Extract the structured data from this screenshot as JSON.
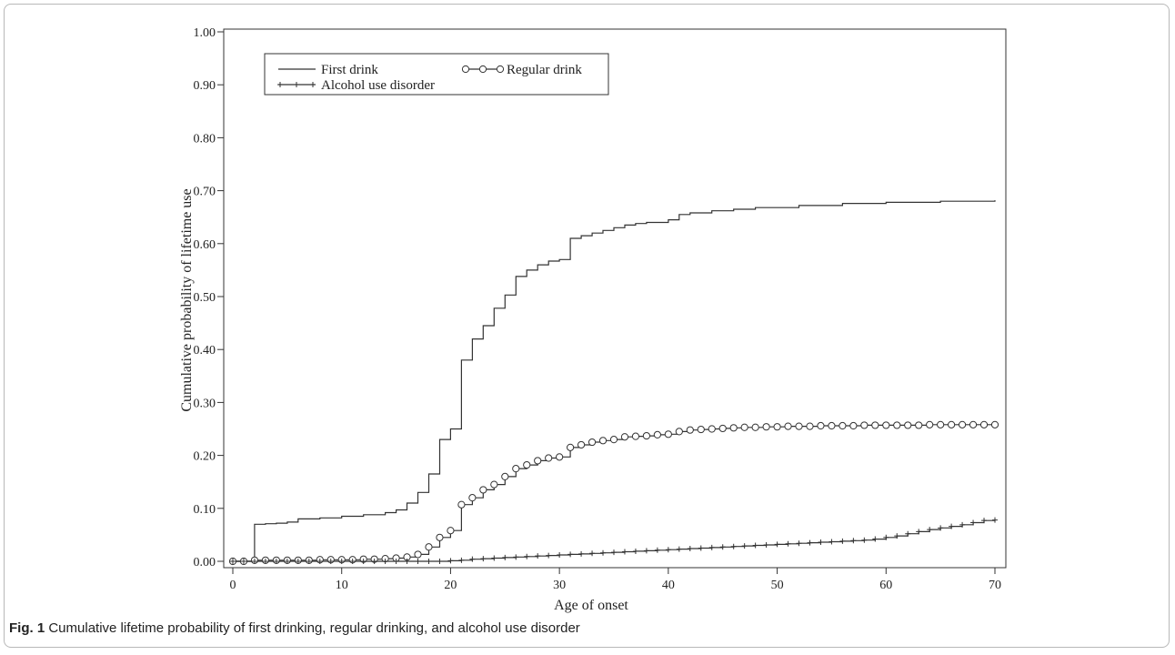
{
  "caption": {
    "label": "Fig. 1",
    "text": "Cumulative lifetime probability of first drinking, regular drinking, and alcohol use disorder"
  },
  "chart_data": {
    "type": "line",
    "xlabel": "Age of onset",
    "ylabel": "Cumulative probability of lifetime use",
    "xlim": [
      0,
      70
    ],
    "ylim": [
      0,
      1
    ],
    "xticks": [
      "0",
      "10",
      "20",
      "30",
      "40",
      "50",
      "60",
      "70"
    ],
    "yticks": [
      "0.00",
      "0.10",
      "0.20",
      "0.30",
      "0.40",
      "0.50",
      "0.60",
      "0.70",
      "0.80",
      "0.90",
      "1.00"
    ],
    "legend_position": "top-left",
    "series": [
      {
        "name": "First drink",
        "marker": "none",
        "x": [
          0,
          2,
          3,
          4,
          5,
          6,
          8,
          10,
          12,
          14,
          15,
          16,
          17,
          18,
          19,
          20,
          21,
          22,
          23,
          24,
          25,
          26,
          27,
          28,
          29,
          30,
          31,
          32,
          33,
          34,
          35,
          36,
          37,
          38,
          40,
          41,
          42,
          44,
          46,
          48,
          52,
          56,
          60,
          65,
          70
        ],
        "y": [
          0.0,
          0.07,
          0.071,
          0.072,
          0.074,
          0.08,
          0.082,
          0.085,
          0.088,
          0.092,
          0.097,
          0.11,
          0.13,
          0.165,
          0.23,
          0.25,
          0.38,
          0.42,
          0.445,
          0.478,
          0.503,
          0.538,
          0.55,
          0.56,
          0.567,
          0.57,
          0.61,
          0.615,
          0.62,
          0.625,
          0.63,
          0.635,
          0.638,
          0.64,
          0.645,
          0.655,
          0.658,
          0.662,
          0.665,
          0.668,
          0.672,
          0.676,
          0.678,
          0.68,
          0.682
        ]
      },
      {
        "name": "Regular drink",
        "marker": "circle",
        "x": [
          0,
          1,
          2,
          3,
          4,
          5,
          6,
          7,
          8,
          9,
          10,
          11,
          12,
          13,
          14,
          15,
          16,
          17,
          18,
          19,
          20,
          21,
          22,
          23,
          24,
          25,
          26,
          27,
          28,
          29,
          30,
          31,
          32,
          33,
          34,
          35,
          36,
          37,
          38,
          39,
          40,
          41,
          42,
          43,
          44,
          45,
          46,
          47,
          48,
          49,
          50,
          51,
          52,
          53,
          54,
          55,
          56,
          57,
          58,
          59,
          60,
          61,
          62,
          63,
          64,
          65,
          66,
          67,
          68,
          69,
          70
        ],
        "y": [
          0.0,
          0.0,
          0.002,
          0.002,
          0.002,
          0.002,
          0.002,
          0.002,
          0.003,
          0.003,
          0.003,
          0.003,
          0.004,
          0.004,
          0.005,
          0.006,
          0.008,
          0.013,
          0.027,
          0.045,
          0.058,
          0.107,
          0.12,
          0.135,
          0.145,
          0.16,
          0.175,
          0.182,
          0.19,
          0.195,
          0.197,
          0.215,
          0.22,
          0.225,
          0.228,
          0.23,
          0.235,
          0.236,
          0.237,
          0.239,
          0.24,
          0.245,
          0.248,
          0.249,
          0.25,
          0.251,
          0.252,
          0.253,
          0.253,
          0.254,
          0.254,
          0.255,
          0.255,
          0.255,
          0.256,
          0.256,
          0.256,
          0.256,
          0.257,
          0.257,
          0.257,
          0.257,
          0.257,
          0.257,
          0.258,
          0.258,
          0.258,
          0.258,
          0.258,
          0.258,
          0.258
        ]
      },
      {
        "name": "Alcohol use disorder",
        "marker": "plus",
        "x": [
          0,
          1,
          2,
          3,
          4,
          5,
          6,
          7,
          8,
          9,
          10,
          11,
          12,
          13,
          14,
          15,
          16,
          17,
          18,
          19,
          20,
          21,
          22,
          23,
          24,
          25,
          26,
          27,
          28,
          29,
          30,
          31,
          32,
          33,
          34,
          35,
          36,
          37,
          38,
          39,
          40,
          41,
          42,
          43,
          44,
          45,
          46,
          47,
          48,
          49,
          50,
          51,
          52,
          53,
          54,
          55,
          56,
          57,
          58,
          59,
          60,
          61,
          62,
          63,
          64,
          65,
          66,
          67,
          68,
          69,
          70
        ],
        "y": [
          0.0,
          0.0,
          0.0,
          0.0,
          0.0,
          0.0,
          0.0,
          0.0,
          0.0,
          0.0,
          0.0,
          0.0,
          0.0,
          0.0,
          0.0,
          0.0,
          0.0,
          0.0,
          0.0,
          0.0,
          0.001,
          0.002,
          0.004,
          0.005,
          0.006,
          0.007,
          0.008,
          0.009,
          0.01,
          0.011,
          0.012,
          0.013,
          0.014,
          0.015,
          0.016,
          0.017,
          0.018,
          0.019,
          0.02,
          0.021,
          0.022,
          0.023,
          0.024,
          0.025,
          0.026,
          0.027,
          0.028,
          0.029,
          0.03,
          0.031,
          0.032,
          0.033,
          0.034,
          0.035,
          0.036,
          0.037,
          0.038,
          0.039,
          0.04,
          0.042,
          0.045,
          0.048,
          0.052,
          0.056,
          0.06,
          0.063,
          0.066,
          0.069,
          0.073,
          0.077,
          0.078
        ]
      }
    ]
  }
}
